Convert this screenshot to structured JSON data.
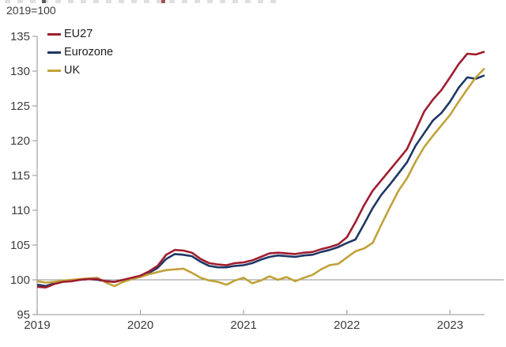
{
  "page": {
    "background": "#ffffff"
  },
  "chart_data": {
    "type": "line",
    "title": "",
    "subtitle": "2019=100",
    "x_unit": "month",
    "x_months_start": "2019-01",
    "x_months_end": "2023-05",
    "x_tick_labels": [
      "2019",
      "2020",
      "2021",
      "2022",
      "2023"
    ],
    "x_tick_months": [
      0,
      12,
      24,
      36,
      48
    ],
    "ylim": [
      95,
      135
    ],
    "y_ticks": [
      95,
      100,
      105,
      110,
      115,
      120,
      125,
      130,
      135
    ],
    "reference_line_y": 100,
    "grid": false,
    "legend_position": "top-left-inside",
    "axis_color": "#a9a9a9",
    "reference_line_color": "#8f8f8f",
    "label_color": "#3d3d3d",
    "series": [
      {
        "name": "EU27",
        "color": "#a01d2f",
        "values": [
          99.0,
          98.9,
          99.4,
          99.7,
          99.8,
          100.0,
          100.1,
          100.1,
          99.8,
          99.7,
          100.0,
          100.3,
          100.6,
          101.2,
          102.0,
          103.6,
          104.3,
          104.2,
          103.9,
          103.0,
          102.4,
          102.2,
          102.1,
          102.4,
          102.5,
          102.8,
          103.3,
          103.8,
          103.9,
          103.8,
          103.7,
          103.9,
          104.0,
          104.4,
          104.7,
          105.1,
          106.1,
          108.3,
          110.7,
          112.8,
          114.3,
          115.8,
          117.3,
          118.8,
          121.5,
          124.2,
          125.9,
          127.3,
          129.1,
          131.0,
          132.5,
          132.4,
          132.8
        ]
      },
      {
        "name": "Eurozone",
        "color": "#1e3866",
        "values": [
          99.3,
          99.1,
          99.5,
          99.8,
          99.9,
          100.0,
          100.1,
          100.0,
          99.8,
          99.7,
          100.0,
          100.2,
          100.5,
          101.0,
          101.7,
          103.0,
          103.7,
          103.6,
          103.4,
          102.6,
          102.0,
          101.8,
          101.8,
          102.0,
          102.1,
          102.4,
          102.9,
          103.3,
          103.5,
          103.4,
          103.3,
          103.5,
          103.6,
          104.0,
          104.3,
          104.7,
          105.3,
          105.8,
          108.0,
          110.3,
          112.2,
          113.7,
          115.3,
          116.9,
          119.3,
          121.1,
          122.9,
          124.0,
          125.6,
          127.6,
          129.1,
          128.9,
          129.4
        ]
      },
      {
        "name": "UK",
        "color": "#c1a23a",
        "values": [
          99.8,
          99.6,
          99.7,
          99.9,
          100.0,
          100.1,
          100.2,
          100.3,
          99.6,
          99.1,
          99.7,
          100.1,
          100.4,
          100.8,
          101.1,
          101.4,
          101.5,
          101.6,
          101.0,
          100.3,
          99.9,
          99.7,
          99.3,
          99.9,
          100.3,
          99.5,
          99.9,
          100.5,
          100.0,
          100.4,
          99.8,
          100.3,
          100.7,
          101.5,
          102.1,
          102.3,
          103.2,
          104.1,
          104.5,
          105.3,
          107.9,
          110.4,
          112.8,
          114.6,
          117.0,
          119.1,
          120.7,
          122.2,
          123.7,
          125.6,
          127.4,
          129.1,
          130.4
        ]
      }
    ]
  }
}
